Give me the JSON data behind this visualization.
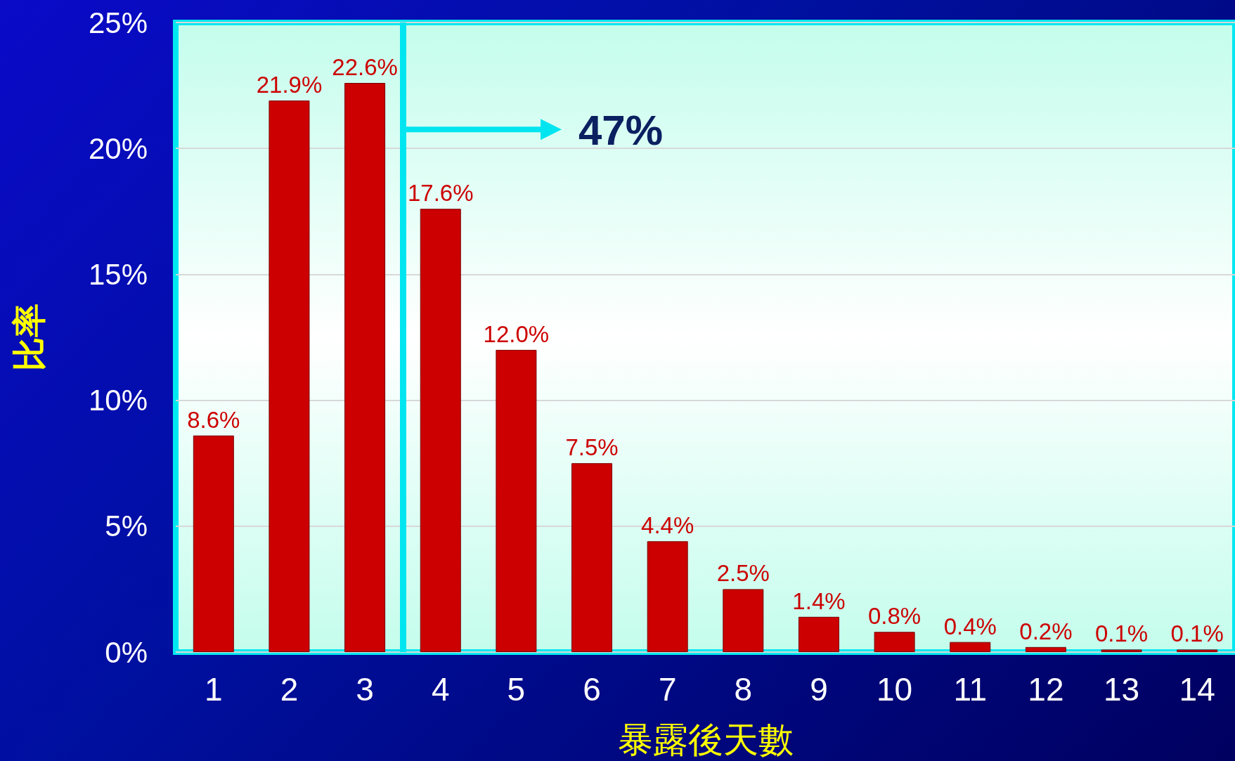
{
  "chart_data": {
    "type": "bar",
    "xlabel": "暴露後天數",
    "ylabel": "比率",
    "x": [
      1,
      2,
      3,
      4,
      5,
      6,
      7,
      8,
      9,
      10,
      11,
      12,
      13,
      14
    ],
    "xlim": [
      0.5,
      14.5
    ],
    "xticks": [
      1,
      2,
      3,
      4,
      5,
      6,
      7,
      8,
      9,
      10,
      11,
      12,
      13,
      14
    ],
    "values": [
      8.6,
      21.9,
      22.6,
      17.6,
      12.0,
      7.5,
      4.4,
      2.5,
      1.4,
      0.8,
      0.4,
      0.2,
      0.1,
      0.1
    ],
    "value_labels": [
      "8.6%",
      "21.9%",
      "22.6%",
      "17.6%",
      "12.0%",
      "7.5%",
      "4.4%",
      "2.5%",
      "1.4%",
      "0.8%",
      "0.4%",
      "0.2%",
      "0.1%",
      "0.1%"
    ],
    "color": "#cc0000",
    "ylim": [
      0,
      25
    ],
    "yticks": [
      {
        "value": 0,
        "label": "0%"
      },
      {
        "value": 5,
        "label": "5%"
      },
      {
        "value": 10,
        "label": "10%"
      },
      {
        "value": 15,
        "label": "15%"
      },
      {
        "value": 20,
        "label": "20%"
      },
      {
        "value": 25,
        "label": "25%"
      }
    ],
    "grid": "y",
    "annotations": [
      "47%"
    ],
    "ref_lines": [
      {
        "axis": "x",
        "value": 3.5,
        "color": "#00e5f0"
      }
    ]
  }
}
